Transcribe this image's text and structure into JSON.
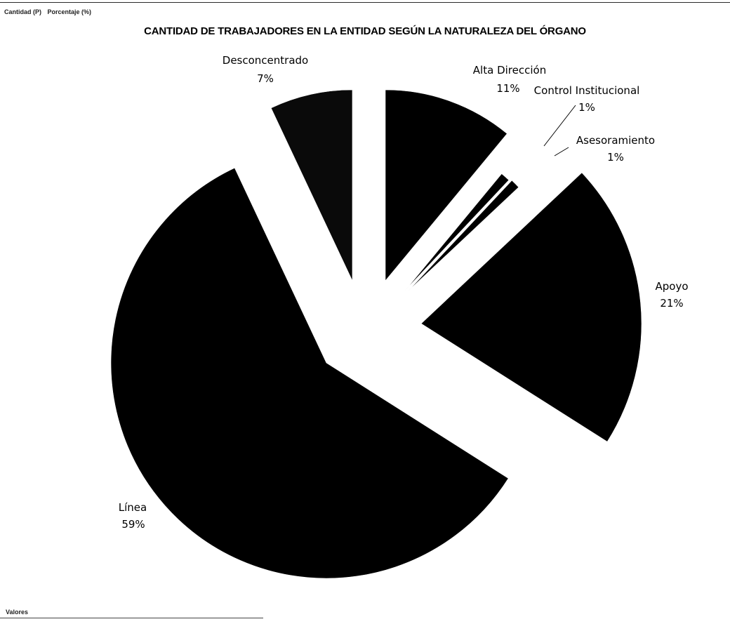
{
  "header": {
    "field_cantidad": "Cantidad (P)",
    "field_porcentaje": "Porcentaje (%)"
  },
  "footer": {
    "values_label": "Valores"
  },
  "chart_data": {
    "type": "pie",
    "title": "CANTIDAD DE TRABAJADORES EN LA ENTIDAD SEGÚN LA NATURALEZA DEL ÓRGANO",
    "slices": [
      {
        "name": "Alta Dirección",
        "value": 11,
        "label": "11%",
        "color": "#000000"
      },
      {
        "name": "Control Institucional",
        "value": 1,
        "label": "1%",
        "color": "#000000"
      },
      {
        "name": "Asesoramiento",
        "value": 1,
        "label": "1%",
        "color": "#000000"
      },
      {
        "name": "Apoyo",
        "value": 21,
        "label": "21%",
        "color": "#000000"
      },
      {
        "name": "Línea",
        "value": 59,
        "label": "59%",
        "color": "#000000"
      },
      {
        "name": "Desconcentrado",
        "value": 7,
        "label": "7%",
        "color": "#0a0a0a"
      }
    ],
    "exploded": true,
    "legend": "none"
  }
}
